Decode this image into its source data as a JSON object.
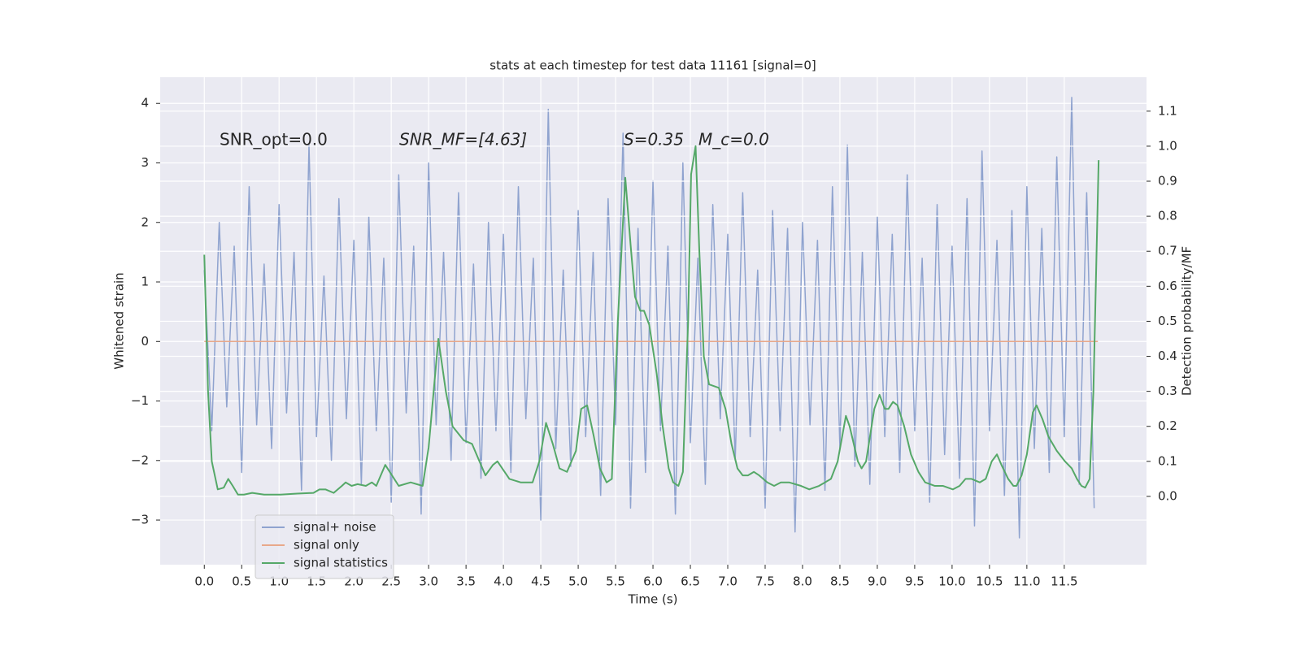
{
  "chart_data": {
    "type": "line",
    "title": "stats at each timestep for test data 11161 [signal=0]",
    "xlabel": "Time (s)",
    "ylabel": "Whitened strain",
    "y2label": "Detection probability/MF",
    "annotations": [
      "SNR_opt=0.0",
      "SNR_MF=[4.63]",
      "S=0.35",
      "M_c=0.0"
    ],
    "xlim": [
      -0.59,
      12.6
    ],
    "ylim": [
      -3.75,
      4.44
    ],
    "y2lim": [
      -0.195,
      1.197
    ],
    "xticks": [
      {
        "value": 0,
        "label": "0.0"
      },
      0.5,
      {
        "value": 1,
        "label": "1.0"
      },
      1.5,
      {
        "value": 2,
        "label": "2.0"
      },
      2.5,
      {
        "value": 3,
        "label": "3.0"
      },
      3.5,
      {
        "value": 4,
        "label": "4.0"
      },
      4.5,
      {
        "value": 5,
        "label": "5.0"
      },
      5.5,
      {
        "value": 6,
        "label": "6.0"
      },
      6.5,
      {
        "value": 7,
        "label": "7.0"
      },
      7.5,
      {
        "value": 8,
        "label": "8.0"
      },
      8.5,
      {
        "value": 9,
        "label": "9.0"
      },
      9.5,
      {
        "value": 10,
        "label": "10.0"
      },
      10.5,
      {
        "value": 11,
        "label": "11.0"
      },
      11.5
    ],
    "yticks": [
      {
        "value": -3,
        "label": "−3"
      },
      {
        "value": -2,
        "label": "−2"
      },
      {
        "value": -1,
        "label": "−1"
      },
      0,
      1,
      2,
      3,
      4
    ],
    "y2ticks": [
      {
        "value": 0,
        "label": "0.0"
      },
      0.1,
      0.2,
      0.3,
      0.4,
      0.5,
      0.6,
      0.7,
      0.8,
      0.9,
      {
        "value": 1,
        "label": "1.0"
      },
      1.1
    ],
    "grid": true,
    "legend": "lower left",
    "series": [
      {
        "name": "signal+ noise",
        "color": "#8fa3cf",
        "x": [
          0,
          0.1,
          0.2,
          0.3,
          0.4,
          0.5,
          0.6,
          0.7,
          0.8,
          0.9,
          1,
          1.1,
          1.2,
          1.3,
          1.4,
          1.5,
          1.6,
          1.7,
          1.8,
          1.9,
          2,
          2.1,
          2.2,
          2.3,
          2.4,
          2.5,
          2.6,
          2.7,
          2.8,
          2.9,
          3,
          3.1,
          3.2,
          3.3,
          3.4,
          3.5,
          3.6,
          3.7,
          3.8,
          3.9,
          4,
          4.1,
          4.2,
          4.3,
          4.4,
          4.5,
          4.6,
          4.7,
          4.8,
          4.9,
          5,
          5.1,
          5.2,
          5.3,
          5.4,
          5.5,
          5.6,
          5.7,
          5.8,
          5.9,
          6,
          6.1,
          6.2,
          6.3,
          6.4,
          6.5,
          6.6,
          6.7,
          6.8,
          6.9,
          7,
          7.1,
          7.2,
          7.3,
          7.4,
          7.5,
          7.6,
          7.7,
          7.8,
          7.9,
          8,
          8.1,
          8.2,
          8.3,
          8.4,
          8.5,
          8.6,
          8.7,
          8.8,
          8.9,
          9,
          9.1,
          9.2,
          9.3,
          9.4,
          9.5,
          9.6,
          9.7,
          9.8,
          9.9,
          10,
          10.1,
          10.2,
          10.3,
          10.4,
          10.5,
          10.6,
          10.7,
          10.8,
          10.9,
          11,
          11.1,
          11.2,
          11.3,
          11.4,
          11.5,
          11.6,
          11.7,
          11.8,
          11.9
        ],
        "values": [
          1.2,
          -1.5,
          2.0,
          -1.1,
          1.6,
          -2.2,
          2.6,
          -1.4,
          1.3,
          -1.8,
          2.3,
          -1.2,
          1.5,
          -2.5,
          3.3,
          -1.6,
          1.1,
          -2.0,
          2.4,
          -1.3,
          1.7,
          -2.4,
          2.1,
          -1.5,
          1.4,
          -2.7,
          2.8,
          -1.2,
          1.6,
          -2.9,
          3.0,
          -1.4,
          1.5,
          -2.0,
          2.5,
          -1.7,
          1.3,
          -2.3,
          2.0,
          -1.5,
          1.8,
          -2.2,
          2.6,
          -1.3,
          1.4,
          -3.0,
          3.9,
          -1.8,
          1.2,
          -2.1,
          2.2,
          -1.6,
          1.5,
          -2.6,
          2.4,
          -1.4,
          3.5,
          -2.8,
          1.9,
          -2.2,
          2.7,
          -1.5,
          1.6,
          -2.9,
          3.0,
          -1.7,
          1.4,
          -2.4,
          2.3,
          -1.3,
          1.8,
          -2.0,
          2.5,
          -1.6,
          1.2,
          -2.8,
          2.2,
          -1.5,
          1.9,
          -3.2,
          2.0,
          -1.4,
          1.7,
          -2.5,
          2.6,
          -1.8,
          3.3,
          -2.1,
          1.5,
          -2.4,
          2.1,
          -1.6,
          1.8,
          -2.2,
          2.8,
          -1.5,
          1.4,
          -2.7,
          2.3,
          -1.9,
          1.6,
          -2.3,
          2.4,
          -3.1,
          3.2,
          -1.5,
          1.7,
          -2.6,
          2.2,
          -3.3,
          2.6,
          -1.8,
          1.9,
          -2.2,
          3.1,
          -1.6,
          4.1,
          -2.4,
          2.5,
          -2.8
        ]
      },
      {
        "name": "signal only",
        "color": "#e8a88a",
        "x": [
          0,
          11.95
        ],
        "values": [
          0,
          0
        ]
      },
      {
        "name": "signal statistics",
        "color": "#55a868",
        "axis": "y2",
        "x": [
          0,
          0.05,
          0.1,
          0.18,
          0.26,
          0.32,
          0.38,
          0.45,
          0.53,
          0.64,
          0.8,
          1.02,
          1.24,
          1.46,
          1.54,
          1.62,
          1.73,
          1.84,
          1.89,
          1.97,
          2.05,
          2.16,
          2.24,
          2.3,
          2.42,
          2.6,
          2.76,
          2.92,
          3.0,
          3.13,
          3.23,
          3.32,
          3.47,
          3.58,
          3.68,
          3.76,
          3.86,
          3.92,
          4.08,
          4.23,
          4.39,
          4.48,
          4.57,
          4.66,
          4.75,
          4.85,
          4.97,
          5.04,
          5.12,
          5.21,
          5.29,
          5.38,
          5.45,
          5.53,
          5.63,
          5.7,
          5.76,
          5.83,
          5.88,
          5.95,
          6.05,
          6.13,
          6.21,
          6.27,
          6.34,
          6.4,
          6.47,
          6.51,
          6.57,
          6.62,
          6.68,
          6.75,
          6.88,
          6.97,
          7.05,
          7.13,
          7.2,
          7.27,
          7.35,
          7.42,
          7.53,
          7.62,
          7.71,
          7.82,
          7.98,
          8.09,
          8.22,
          8.3,
          8.38,
          8.47,
          8.58,
          8.63,
          8.74,
          8.79,
          8.85,
          8.96,
          9.03,
          9.1,
          9.15,
          9.21,
          9.27,
          9.36,
          9.45,
          9.55,
          9.64,
          9.77,
          9.88,
          10.01,
          10.1,
          10.18,
          10.26,
          10.37,
          10.45,
          10.53,
          10.6,
          10.66,
          10.75,
          10.82,
          10.86,
          10.93,
          11.0,
          11.08,
          11.13,
          11.21,
          11.29,
          11.4,
          11.51,
          11.6,
          11.67,
          11.73,
          11.78,
          11.84,
          11.89,
          11.96
        ],
        "values": [
          0.69,
          0.3,
          0.1,
          0.02,
          0.025,
          0.05,
          0.03,
          0.005,
          0.005,
          0.01,
          0.005,
          0.005,
          0.008,
          0.01,
          0.02,
          0.02,
          0.01,
          0.03,
          0.04,
          0.03,
          0.035,
          0.03,
          0.04,
          0.03,
          0.09,
          0.03,
          0.04,
          0.03,
          0.14,
          0.45,
          0.3,
          0.2,
          0.16,
          0.15,
          0.1,
          0.06,
          0.09,
          0.1,
          0.05,
          0.04,
          0.04,
          0.1,
          0.21,
          0.15,
          0.08,
          0.07,
          0.13,
          0.25,
          0.26,
          0.17,
          0.08,
          0.04,
          0.05,
          0.5,
          0.91,
          0.72,
          0.57,
          0.53,
          0.53,
          0.49,
          0.35,
          0.2,
          0.08,
          0.04,
          0.03,
          0.07,
          0.5,
          0.92,
          1.0,
          0.7,
          0.4,
          0.32,
          0.31,
          0.25,
          0.15,
          0.08,
          0.06,
          0.06,
          0.07,
          0.06,
          0.04,
          0.03,
          0.04,
          0.04,
          0.03,
          0.02,
          0.03,
          0.04,
          0.05,
          0.1,
          0.23,
          0.2,
          0.1,
          0.08,
          0.1,
          0.25,
          0.29,
          0.25,
          0.25,
          0.27,
          0.26,
          0.2,
          0.12,
          0.07,
          0.04,
          0.03,
          0.03,
          0.02,
          0.03,
          0.05,
          0.05,
          0.04,
          0.05,
          0.1,
          0.12,
          0.09,
          0.05,
          0.03,
          0.03,
          0.06,
          0.12,
          0.24,
          0.26,
          0.22,
          0.17,
          0.13,
          0.1,
          0.08,
          0.05,
          0.03,
          0.025,
          0.05,
          0.3,
          0.96
        ]
      }
    ]
  }
}
